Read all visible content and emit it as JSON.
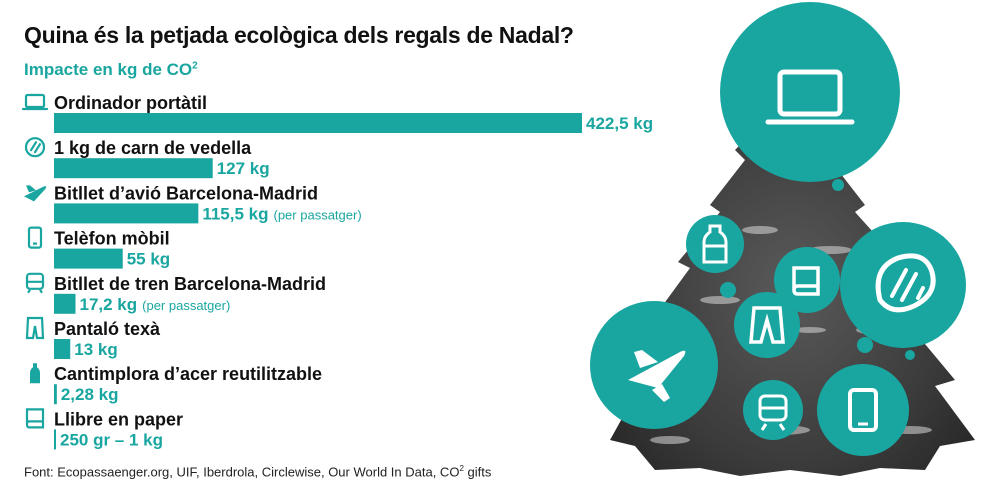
{
  "header": {
    "title": "Quina és la petjada ecològica dels regals de Nadal?",
    "subtitle_main": "Impacte en kg de CO",
    "subtitle_sup": "2"
  },
  "colors": {
    "accent": "#1aa6a0",
    "text": "#111111",
    "tree": "#3a3a3a"
  },
  "chart_data": {
    "type": "bar",
    "orientation": "horizontal",
    "categories": [
      "Ordinador portàtil",
      "1 kg de carn de vedella",
      "Bitllet d’avió Barcelona-Madrid",
      "Telèfon mòbil",
      "Bitllet de tren Barcelona-Madrid",
      "Pantaló texà",
      "Cantimplora d’acer reutilitzable",
      "Llibre en paper"
    ],
    "values": [
      422.5,
      127,
      115.5,
      55,
      17.2,
      13,
      2.28,
      1
    ],
    "value_labels": [
      "422,5 kg",
      "127 kg",
      "115,5 kg",
      "55 kg",
      "17,2 kg",
      "13 kg",
      "2,28 kg",
      "250 gr – 1 kg"
    ],
    "notes": [
      "",
      "",
      "(per passatger)",
      "",
      "(per passatger)",
      "",
      "",
      ""
    ],
    "icons": [
      "laptop-icon",
      "meat-icon",
      "plane-icon",
      "phone-icon",
      "train-icon",
      "jeans-icon",
      "bottle-icon",
      "book-icon"
    ],
    "unit": "kg CO2"
  },
  "footer": {
    "source_main": "Font: Ecopassaenger.org, UIF, Iberdrola, Circlewise, Our World In Data, CO",
    "source_sup": "2",
    "source_end": " gifts"
  }
}
